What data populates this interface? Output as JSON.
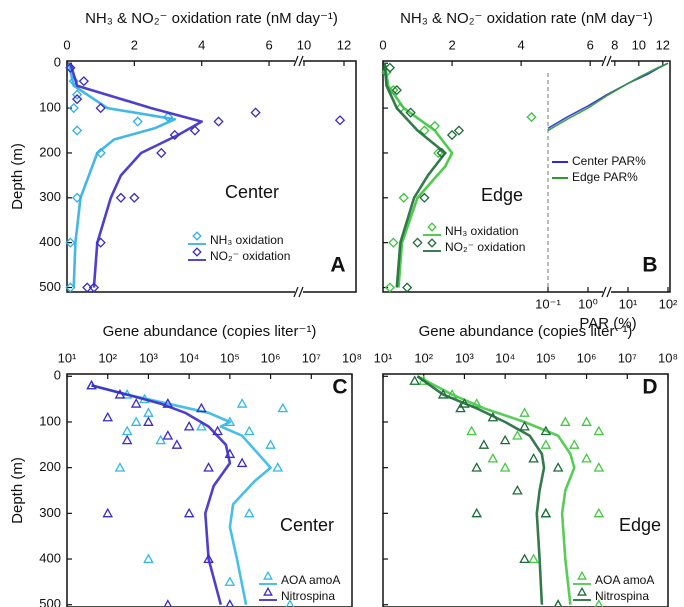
{
  "chart_data": [
    {
      "type": "line",
      "xlabel": "NH₃ & NO₂⁻ oxidation rate (nM day⁻¹)",
      "ylabel": "Depth (m)",
      "annotation": "Center",
      "panel_label": "A",
      "xlim": [
        0,
        12.6
      ],
      "x_break": [
        6.8,
        9.9
      ],
      "xticks": [
        0,
        2,
        4,
        6,
        10,
        12
      ],
      "ylim": [
        -5,
        510
      ],
      "y_inverted": true,
      "yticks": [
        0,
        100,
        200,
        300,
        400,
        500
      ],
      "series": [
        {
          "name": "NH₃ oxidation",
          "color": "#2fb0e6",
          "marker": "diamond",
          "points": {
            "x": [
              0.1,
              0.2,
              0.3,
              0.2,
              3.0,
              2.1,
              0.3,
              1.0,
              0.3,
              0.1,
              0.1
            ],
            "y": [
              10,
              40,
              70,
              100,
              120,
              130,
              150,
              200,
              300,
              400,
              500
            ]
          },
          "curve": {
            "x": [
              0.05,
              0.2,
              1.2,
              3.2,
              2.6,
              1.4,
              0.9,
              0.4,
              0.25,
              0.2
            ],
            "y": [
              0,
              50,
              100,
              125,
              145,
              170,
              200,
              300,
              400,
              500
            ]
          }
        },
        {
          "name": "NO₂⁻ oxidation",
          "color": "#3b2bc8",
          "marker": "diamond",
          "points": {
            "x": [
              0.1,
              0.5,
              0.3,
              1.0,
              5.6,
              11.8,
              4.5,
              3.8,
              3.2,
              2.8,
              2.0,
              1.6,
              1.0,
              0.8,
              0.6
            ],
            "y": [
              10,
              40,
              80,
              100,
              110,
              127,
              130,
              150,
              160,
              200,
              300,
              300,
              400,
              500,
              500
            ]
          },
          "curve": {
            "x": [
              0.1,
              0.3,
              2.5,
              4.0,
              3.3,
              2.2,
              1.6,
              1.3,
              0.9,
              0.8
            ],
            "y": [
              0,
              50,
              100,
              130,
              160,
              200,
              250,
              300,
              400,
              500
            ]
          }
        }
      ]
    },
    {
      "type": "line",
      "xlabel": "NH₃ & NO₂⁻ oxidation rate (nM day⁻¹)",
      "annotation": "Edge",
      "panel_label": "B",
      "xlim": [
        0,
        12.6
      ],
      "x_break": [
        6.4,
        7.6
      ],
      "xticks": [
        0,
        2,
        4,
        6,
        8,
        10,
        12
      ],
      "ylim": [
        -5,
        510
      ],
      "y_inverted": true,
      "yticks": [
        0,
        100,
        200,
        300,
        400,
        500
      ],
      "x2label": "PAR (%)",
      "x2lim": [
        0.1,
        100
      ],
      "x2_log": true,
      "x2ticks": [
        {
          "value": 0.1,
          "label": "10⁻¹"
        },
        {
          "value": 1,
          "label": "10⁰"
        },
        {
          "value": 10,
          "label": "10¹"
        },
        {
          "value": 100,
          "label": "10²"
        }
      ],
      "series": [
        {
          "name": "NH₃ oxidation",
          "color": "#3cc43c",
          "marker": "diamond",
          "points": {
            "x": [
              0.1,
              0.3,
              0.5,
              4.3,
              1.5,
              1.2,
              1.6,
              0.6,
              0.3,
              0.2
            ],
            "y": [
              20,
              60,
              100,
              120,
              140,
              150,
              200,
              300,
              400,
              500
            ]
          },
          "curve": {
            "x": [
              0.05,
              0.15,
              0.6,
              1.5,
              2.0,
              1.8,
              1.0,
              0.55,
              0.45
            ],
            "y": [
              0,
              50,
              100,
              150,
              200,
              230,
              300,
              400,
              500
            ]
          }
        },
        {
          "name": "NO₂⁻ oxidation",
          "color": "#1f6b3a",
          "marker": "diamond",
          "points": {
            "x": [
              0.2,
              0.4,
              0.8,
              2.2,
              2.0,
              1.7,
              1.2,
              1.0,
              0.7
            ],
            "y": [
              10,
              60,
              110,
              150,
              160,
              200,
              300,
              400,
              500
            ]
          },
          "curve": {
            "x": [
              0.05,
              0.1,
              0.4,
              1.0,
              1.8,
              1.3,
              0.9,
              0.5,
              0.4
            ],
            "y": [
              0,
              50,
              100,
              150,
              200,
              250,
              300,
              400,
              500
            ]
          }
        },
        {
          "name": "Center  PAR%",
          "color": "#2a2ad6",
          "axis": "x2",
          "curve": {
            "x": [
              100,
              60,
              30,
              10,
              3,
              1,
              0.3,
              0.1
            ],
            "y": [
              0,
              10,
              25,
              45,
              70,
              95,
              120,
              145
            ]
          }
        },
        {
          "name": "Edge PAR%",
          "color": "#2e9a2e",
          "axis": "x2",
          "curve": {
            "x": [
              100,
              50,
              20,
              8,
              3,
              1,
              0.3,
              0.1
            ],
            "y": [
              0,
              12,
              30,
              50,
              72,
              100,
              125,
              150
            ]
          }
        }
      ]
    },
    {
      "type": "line",
      "xlabel": "Gene abundance (copies liter⁻¹)",
      "ylabel": "Depth (m)",
      "annotation": "Center",
      "panel_label": "C",
      "xlim": [
        10,
        100000000
      ],
      "x_log": true,
      "xticks": [
        {
          "value": 10,
          "label": "10¹"
        },
        {
          "value": 100,
          "label": "10²"
        },
        {
          "value": 1000,
          "label": "10³"
        },
        {
          "value": 10000,
          "label": "10⁴"
        },
        {
          "value": 100000,
          "label": "10⁵"
        },
        {
          "value": 1000000,
          "label": "10⁶"
        },
        {
          "value": 10000000,
          "label": "10⁷"
        },
        {
          "value": 100000000,
          "label": "10⁸"
        }
      ],
      "ylim": [
        -5,
        505
      ],
      "y_inverted": true,
      "yticks": [
        0,
        100,
        200,
        300,
        400,
        500
      ],
      "series": [
        {
          "name": "AOA amoA",
          "color": "#33b8e8",
          "marker": "triangle",
          "points": {
            "x": [
              40,
              300,
              800,
              3000,
              200000,
              2000000,
              1000,
              500,
              20000,
              300000,
              100000,
              1000000,
              300,
              2000,
              1500000,
              200,
              300000,
              1000,
              100000,
              100000,
              3000000
            ],
            "y": [
              20,
              40,
              50,
              60,
              60,
              70,
              80,
              100,
              110,
              120,
              100,
              150,
              120,
              140,
              200,
              200,
              300,
              400,
              500,
              450,
              500
            ]
          },
          "curve": {
            "x": [
              40,
              300,
              3000,
              30000,
              100000,
              60000,
              200000,
              1000000,
              400000,
              120000,
              100000,
              150000,
              250000
            ],
            "y": [
              20,
              40,
              60,
              80,
              100,
              110,
              130,
              200,
              230,
              280,
              330,
              400,
              500
            ]
          }
        },
        {
          "name": "Nitrospina",
          "color": "#3b2bc8",
          "marker": "triangle",
          "points": {
            "x": [
              40,
              200,
              500,
              3000,
              20000,
              100,
              1000,
              10000,
              50000,
              3000,
              300,
              100000,
              5000,
              200000,
              30000,
              100,
              10000,
              30000,
              3000,
              100000
            ],
            "y": [
              20,
              40,
              60,
              60,
              70,
              90,
              100,
              110,
              120,
              130,
              140,
              170,
              150,
              190,
              200,
              300,
              300,
              400,
              500,
              500
            ]
          },
          "curve": {
            "x": [
              40,
              300,
              2000,
              8000,
              30000,
              80000,
              100000,
              40000,
              25000,
              30000,
              60000
            ],
            "y": [
              20,
              40,
              60,
              80,
              110,
              150,
              190,
              240,
              300,
              400,
              500
            ]
          }
        }
      ]
    },
    {
      "type": "line",
      "xlabel": "Gene abundance (copies liter⁻¹)",
      "annotation": "Edge",
      "panel_label": "D",
      "xlim": [
        10,
        100000000
      ],
      "x_log": true,
      "xticks": [
        {
          "value": 10,
          "label": "10¹"
        },
        {
          "value": 100,
          "label": "10²"
        },
        {
          "value": 1000,
          "label": "10³"
        },
        {
          "value": 10000,
          "label": "10⁴"
        },
        {
          "value": 100000,
          "label": "10⁵"
        },
        {
          "value": 1000000,
          "label": "10⁶"
        },
        {
          "value": 10000000,
          "label": "10⁷"
        },
        {
          "value": 100000000,
          "label": "10⁸"
        }
      ],
      "ylim": [
        -5,
        505
      ],
      "y_inverted": true,
      "yticks": [
        0,
        100,
        200,
        300,
        400,
        500
      ],
      "series": [
        {
          "name": "AOA amoA",
          "color": "#45c845",
          "marker": "triangle",
          "points": {
            "x": [
              100,
              500,
              2000,
              30000,
              300000,
              1000000,
              1500,
              20000,
              100000,
              500000,
              2000000,
              5000,
              1000000,
              2000000,
              10000,
              100000,
              2000000,
              50000,
              200000,
              2000000
            ],
            "y": [
              10,
              40,
              60,
              80,
              100,
              100,
              120,
              130,
              150,
              150,
              120,
              180,
              180,
              200,
              200,
              300,
              300,
              400,
              500,
              500
            ]
          },
          "curve": {
            "x": [
              70,
              500,
              3000,
              30000,
              200000,
              400000,
              500000,
              300000,
              250000,
              300000,
              400000
            ],
            "y": [
              0,
              40,
              70,
              100,
              130,
              170,
              200,
              250,
              300,
              400,
              500
            ]
          }
        },
        {
          "name": "Nitrospina",
          "color": "#1e6b3a",
          "marker": "triangle",
          "points": {
            "x": [
              60,
              300,
              1000,
              5000,
              30000,
              100000,
              800,
              10000,
              50000,
              200000,
              2000,
              3000,
              20000,
              2000,
              100000,
              30000,
              200000
            ],
            "y": [
              10,
              40,
              60,
              90,
              110,
              120,
              70,
              140,
              180,
              200,
              200,
              150,
              250,
              300,
              300,
              400,
              500
            ]
          },
          "curve": {
            "x": [
              70,
              300,
              2000,
              10000,
              40000,
              80000,
              90000,
              70000,
              60000,
              70000,
              80000
            ],
            "y": [
              0,
              40,
              70,
              100,
              130,
              170,
              200,
              250,
              300,
              400,
              500
            ]
          }
        }
      ]
    }
  ]
}
